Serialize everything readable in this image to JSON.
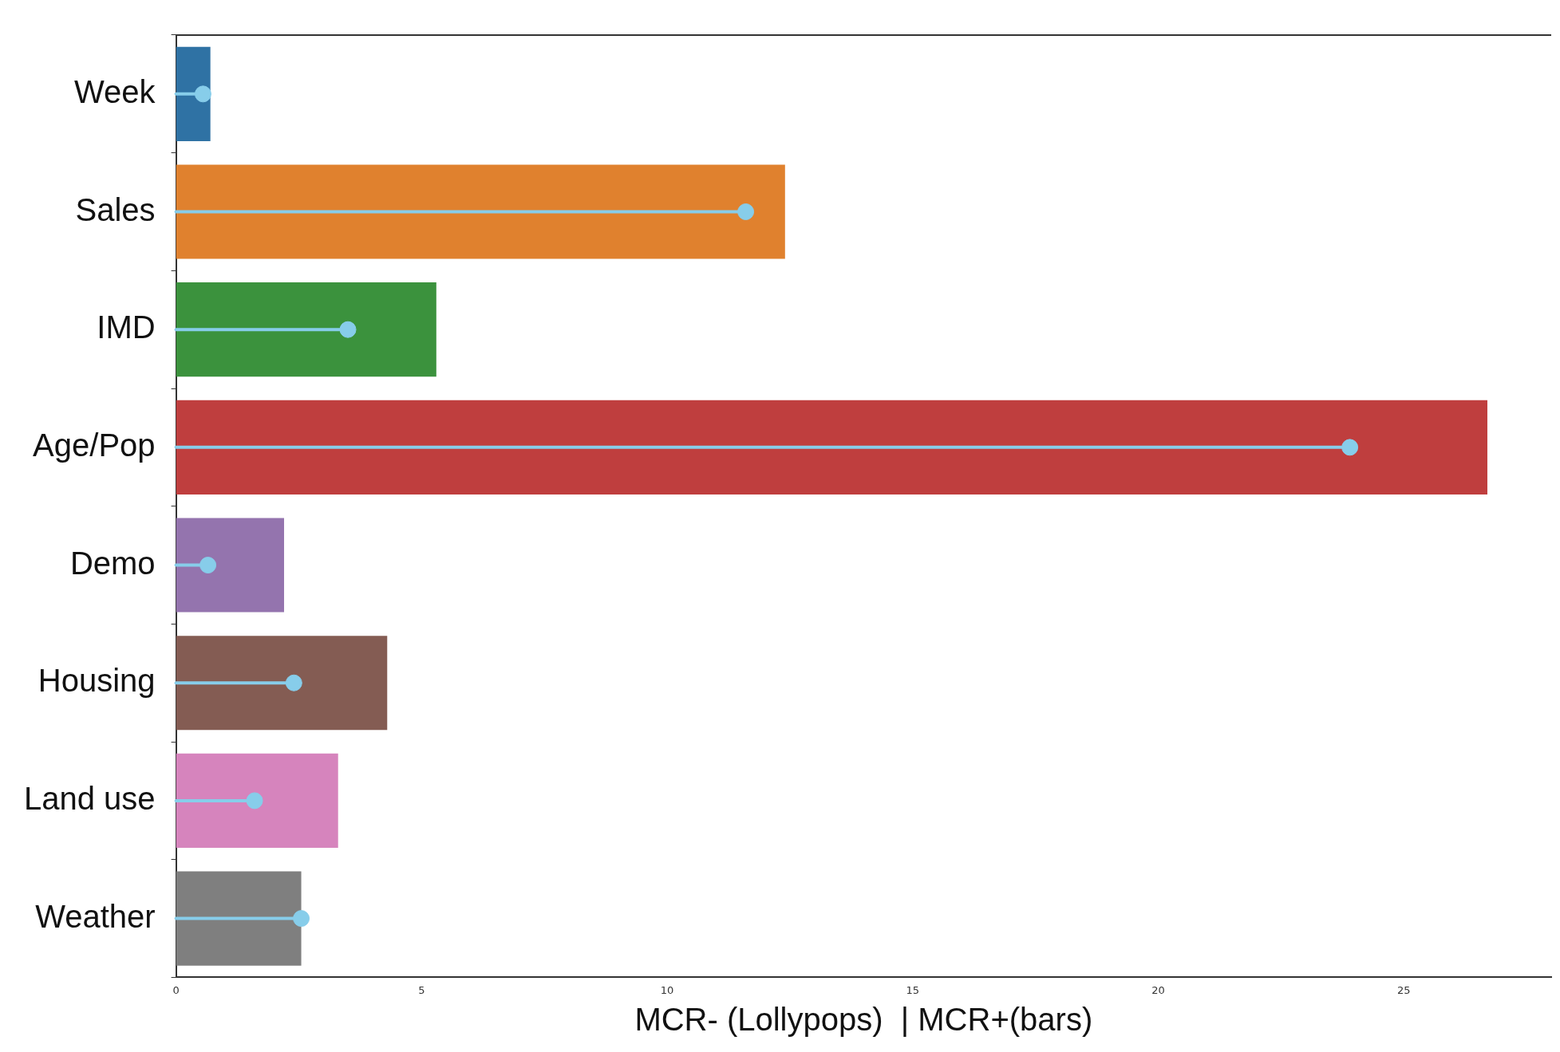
{
  "chart_data": {
    "type": "bar",
    "orientation": "horizontal",
    "xlabel": "MCR- (Lollypops)  | MCR+(bars)",
    "categories": [
      "Week",
      "Sales",
      "IMD",
      "Age/Pop",
      "Demo",
      "Housing",
      "Land use",
      "Weather"
    ],
    "series": [
      {
        "colors": [
          "#2f72a4",
          "#e0812e",
          "#3b923d",
          "#bf3e3e",
          "#9474ae",
          "#845c53",
          "#d684bd",
          "#7f7f7f"
        ],
        "values": [
          0.7,
          12.4,
          5.3,
          26.7,
          2.2,
          4.3,
          3.3,
          2.55
        ]
      },
      {
        "type": "lollipop",
        "color": "#87cdea",
        "values": [
          0.55,
          11.6,
          3.5,
          23.9,
          0.65,
          2.4,
          1.6,
          2.55
        ]
      }
    ],
    "xlim": [
      0,
      28
    ],
    "xticks": [
      0,
      5,
      10,
      15,
      20,
      25
    ],
    "grid": false,
    "legend": false,
    "marker": "circle"
  }
}
